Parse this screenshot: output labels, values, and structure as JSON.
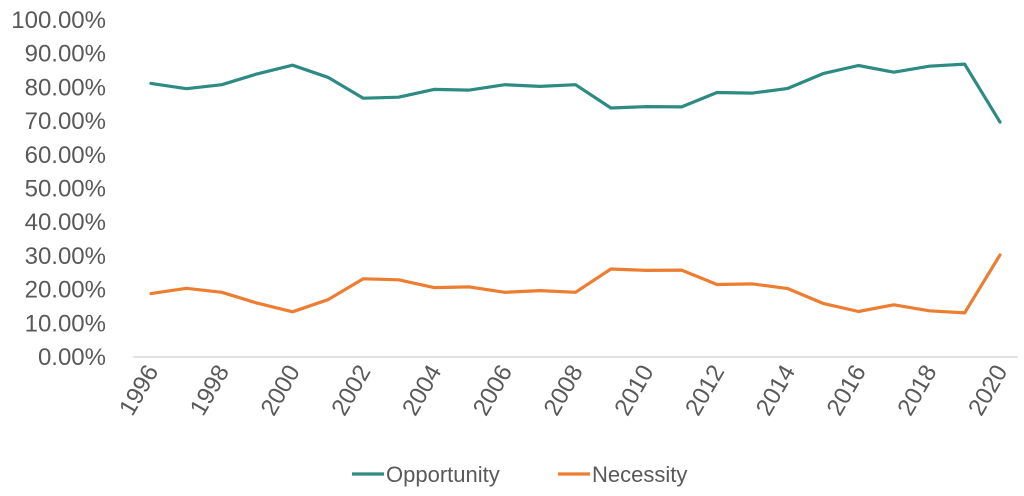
{
  "chart_data": {
    "type": "line",
    "x": [
      1996,
      1997,
      1998,
      1999,
      2000,
      2001,
      2002,
      2003,
      2004,
      2005,
      2006,
      2007,
      2008,
      2009,
      2010,
      2011,
      2012,
      2013,
      2014,
      2015,
      2016,
      2017,
      2018,
      2019,
      2020
    ],
    "x_tick_labels": [
      "1996",
      "1998",
      "2000",
      "2002",
      "2004",
      "2006",
      "2008",
      "2010",
      "2012",
      "2014",
      "2016",
      "2018",
      "2020"
    ],
    "y_tick_labels": [
      "0.00%",
      "10.00%",
      "20.00%",
      "30.00%",
      "40.00%",
      "50.00%",
      "60.00%",
      "70.00%",
      "80.00%",
      "90.00%",
      "100.00%"
    ],
    "ylim": [
      0,
      100
    ],
    "title": "",
    "xlabel": "",
    "ylabel": "",
    "grid": false,
    "legend_position": "bottom",
    "series": [
      {
        "name": "Opportunity",
        "color": "#2e8b84",
        "values": [
          81.2,
          79.6,
          80.8,
          84.0,
          86.6,
          83.0,
          76.8,
          77.1,
          79.4,
          79.2,
          80.8,
          80.3,
          80.8,
          73.9,
          74.3,
          74.2,
          78.5,
          78.3,
          79.7,
          84.1,
          86.5,
          84.5,
          86.3,
          86.9,
          69.7
        ]
      },
      {
        "name": "Necessity",
        "color": "#ed7d31",
        "values": [
          18.8,
          20.4,
          19.2,
          16.0,
          13.4,
          17.0,
          23.2,
          22.9,
          20.6,
          20.8,
          19.2,
          19.7,
          19.2,
          26.1,
          25.7,
          25.8,
          21.5,
          21.7,
          20.3,
          15.9,
          13.5,
          15.5,
          13.7,
          13.1,
          30.3
        ]
      }
    ]
  }
}
